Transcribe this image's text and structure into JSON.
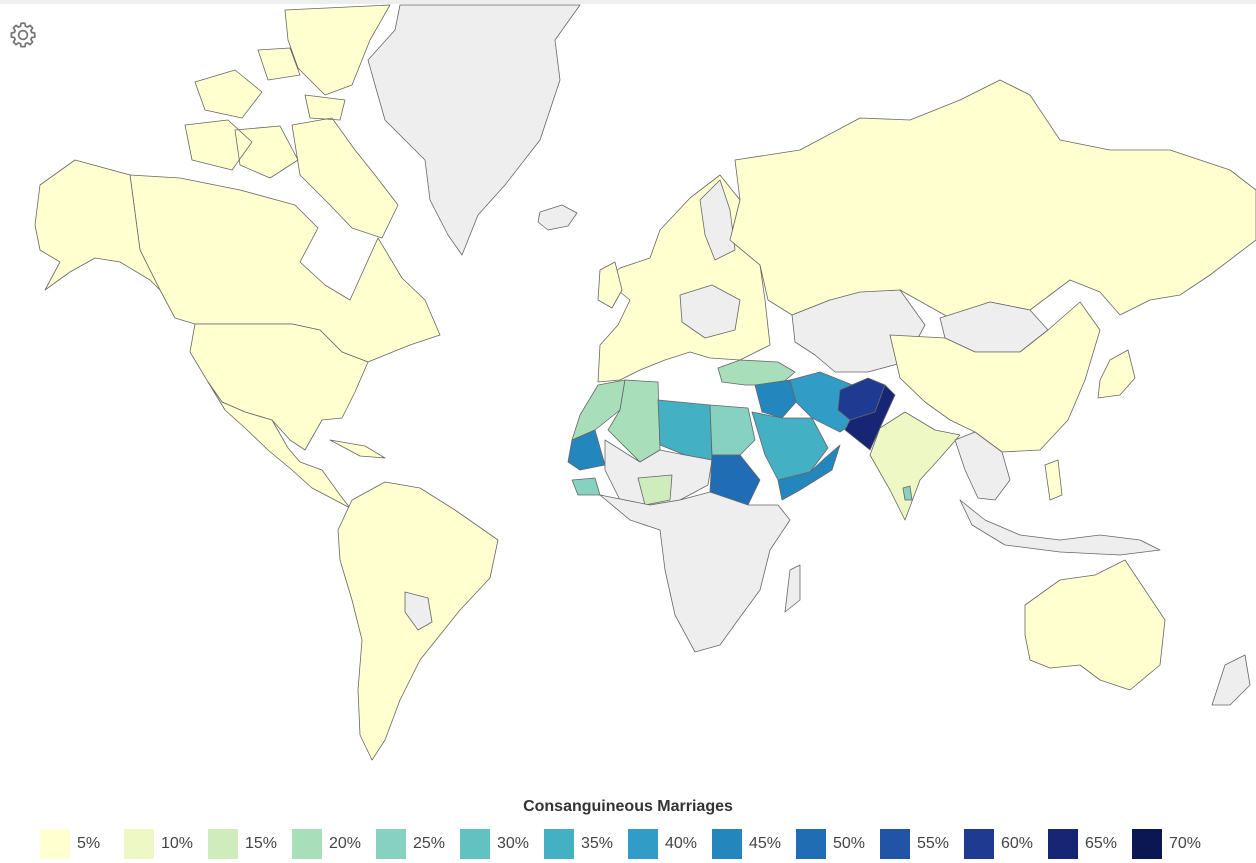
{
  "legend": {
    "title": "Consanguineous Marriages",
    "items": [
      {
        "label": "5%",
        "color": "#ffffd0"
      },
      {
        "label": "10%",
        "color": "#eef8c4"
      },
      {
        "label": "15%",
        "color": "#cfecbc"
      },
      {
        "label": "20%",
        "color": "#a8dfba"
      },
      {
        "label": "25%",
        "color": "#86d1c0"
      },
      {
        "label": "30%",
        "color": "#62c1c1"
      },
      {
        "label": "35%",
        "color": "#44b0c4"
      },
      {
        "label": "40%",
        "color": "#319dc6"
      },
      {
        "label": "45%",
        "color": "#2387be"
      },
      {
        "label": "50%",
        "color": "#206db5"
      },
      {
        "label": "55%",
        "color": "#2154a6"
      },
      {
        "label": "60%",
        "color": "#1f3b91"
      },
      {
        "label": "65%",
        "color": "#162574"
      },
      {
        "label": "70%",
        "color": "#0a1752"
      }
    ]
  },
  "map": {
    "no_data_color": "#eeeeee",
    "border_color": "#666666",
    "icon": "gear-icon"
  }
}
